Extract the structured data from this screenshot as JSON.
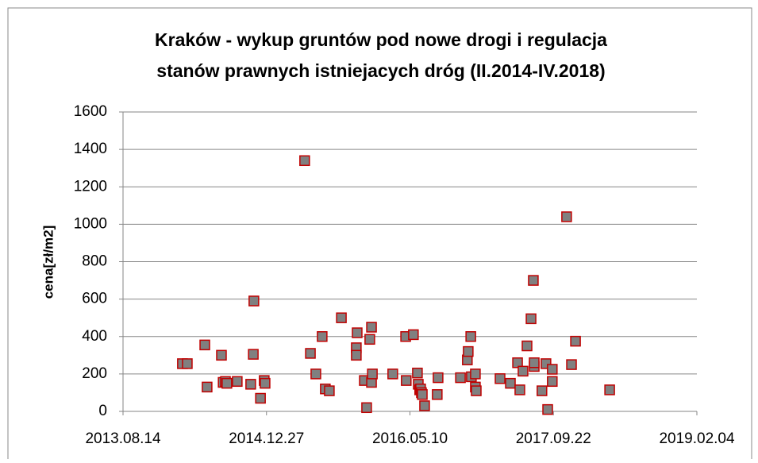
{
  "chart_data": {
    "type": "scatter",
    "title": [
      "Kraków - wykup gruntów pod nowe drogi i regulacja",
      "stanów prawnych istniejacych dróg  (II.2014-IV.2018)"
    ],
    "y_label": "cena[zł/m2]",
    "xlim": [
      41500,
      43500
    ],
    "xticks": [
      {
        "value": 41500,
        "label": "2013.08.14"
      },
      {
        "value": 42000,
        "label": "2014.12.27"
      },
      {
        "value": 42500,
        "label": "2016.05.10"
      },
      {
        "value": 43000,
        "label": "2017.09.22"
      },
      {
        "value": 43500,
        "label": "2019.02.04"
      }
    ],
    "ylim": [
      0,
      1600
    ],
    "yticks": [
      0,
      200,
      400,
      600,
      800,
      1000,
      1200,
      1400,
      1600
    ],
    "grid": true,
    "marker_fill": "#808080",
    "marker_edge": "#c00000",
    "series": [
      {
        "name": null,
        "x": [
          41707,
          41724,
          41785,
          41793,
          41843,
          41849,
          41857,
          41862,
          41898,
          41945,
          41954,
          41956,
          41979,
          41992,
          41995,
          42133,
          42153,
          42172,
          42194,
          42205,
          42219,
          42261,
          42313,
          42313,
          42316,
          42341,
          42349,
          42360,
          42366,
          42366,
          42369,
          42440,
          42485,
          42487,
          42512,
          42526,
          42529,
          42534,
          42537,
          42540,
          42543,
          42551,
          42598,
          42595,
          42676,
          42700,
          42703,
          42712,
          42714,
          42728,
          42728,
          42731,
          42814,
          42850,
          42875,
          42883,
          42894,
          42908,
          42922,
          42930,
          42933,
          42933,
          42960,
          42974,
          42980,
          42996,
          42996,
          43046,
          43063,
          43077,
          43196
        ],
        "values": [
          255,
          255,
          355,
          130,
          300,
          155,
          160,
          150,
          160,
          145,
          305,
          590,
          70,
          165,
          150,
          1340,
          310,
          200,
          400,
          120,
          110,
          500,
          340,
          300,
          420,
          165,
          20,
          385,
          450,
          155,
          200,
          200,
          400,
          165,
          410,
          205,
          145,
          115,
          120,
          100,
          90,
          30,
          180,
          90,
          180,
          275,
          320,
          400,
          185,
          200,
          130,
          110,
          175,
          150,
          260,
          115,
          215,
          350,
          495,
          700,
          240,
          260,
          110,
          255,
          10,
          225,
          160,
          1040,
          250,
          375,
          115
        ]
      }
    ]
  }
}
